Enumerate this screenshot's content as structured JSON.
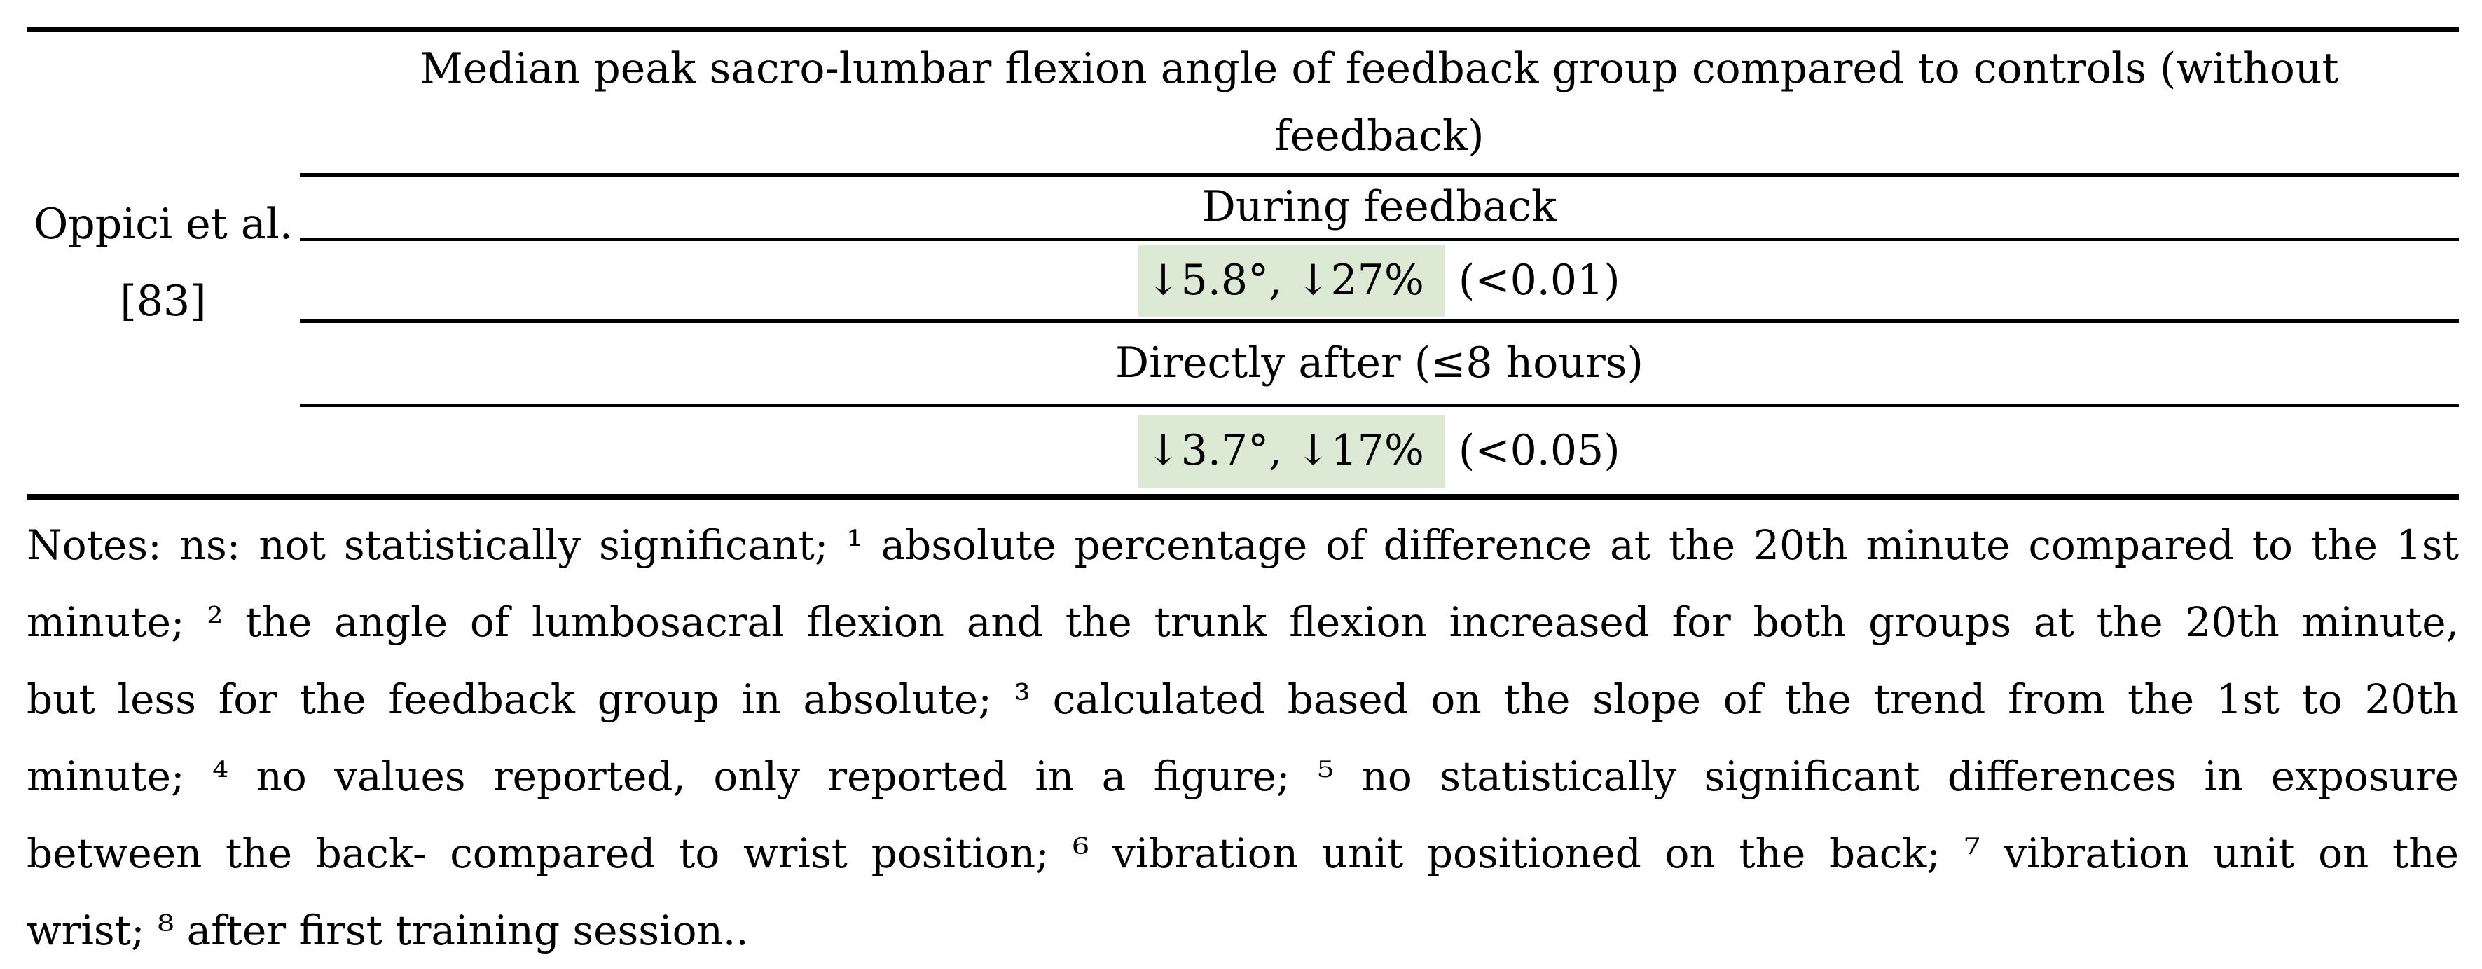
{
  "study": {
    "label_line1": "Oppici et al.",
    "label_line2": "[83]"
  },
  "table": {
    "header_line1": "Median peak sacro-lumbar flexion angle of feedback group compared to controls (without",
    "header_line2": "feedback)",
    "subheader1": "During feedback",
    "value1": {
      "highlight": "↓5.8°, ↓27%",
      "rest": " (<0.01)"
    },
    "subheader2": "Directly after (≤8 hours)",
    "value2": {
      "highlight": "↓3.7°, ↓17%",
      "rest": " (<0.05)"
    }
  },
  "notes": {
    "lines": [
      "Notes: ns: not statistically significant; ¹ absolute percentage of difference at the 20th minute compared to the 1st",
      "minute; ² the angle of lumbosacral flexion and the trunk flexion increased for both groups at the 20th minute,",
      "but less for the feedback group in absolute; ³ calculated based on the slope of the trend from the 1st to 20th",
      "minute; ⁴ no values reported, only reported in a figure; ⁵ no statistically significant differences in exposure",
      "between the back- compared to wrist position; ⁶ vibration unit positioned on the back; ⁷ vibration unit on the",
      "wrist; ⁸ after first training session.."
    ]
  },
  "colors": {
    "highlight_green": "#dcead5",
    "rule_black": "#000000"
  }
}
